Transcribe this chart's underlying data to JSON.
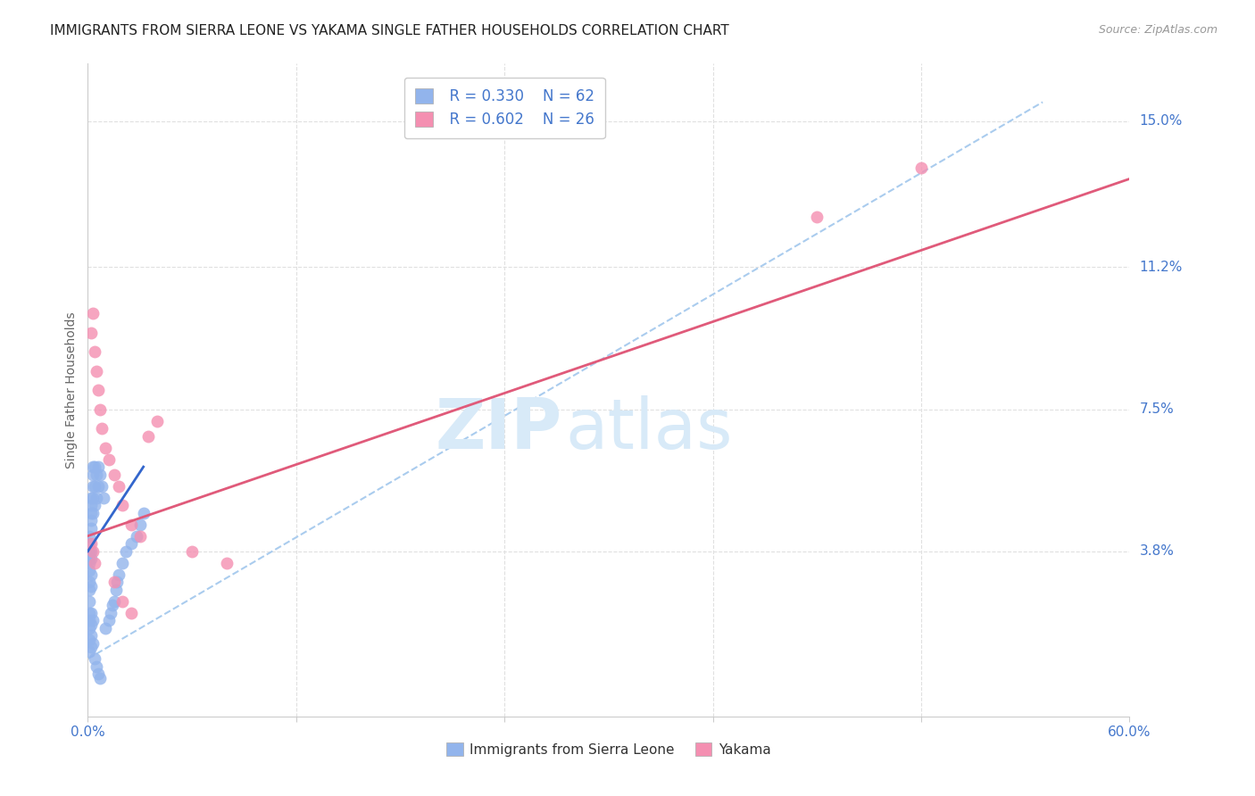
{
  "title": "IMMIGRANTS FROM SIERRA LEONE VS YAKAMA SINGLE FATHER HOUSEHOLDS CORRELATION CHART",
  "source": "Source: ZipAtlas.com",
  "ylabel": "Single Father Households",
  "xlim": [
    0.0,
    0.6
  ],
  "ylim": [
    -0.005,
    0.165
  ],
  "y_tick_labels_right": [
    "15.0%",
    "11.2%",
    "7.5%",
    "3.8%"
  ],
  "y_tick_values_right": [
    0.15,
    0.112,
    0.075,
    0.038
  ],
  "blue_R": "R = 0.330",
  "blue_N": "N = 62",
  "pink_R": "R = 0.602",
  "pink_N": "N = 26",
  "blue_color": "#92B4EC",
  "pink_color": "#F48FB1",
  "blue_line_color": "#3366CC",
  "pink_line_color": "#E05A7A",
  "dashed_line_color": "#AACCEE",
  "watermark_zip": "ZIP",
  "watermark_atlas": "atlas",
  "watermark_color": "#D8EAF8",
  "blue_scatter_x": [
    0.001,
    0.001,
    0.001,
    0.001,
    0.001,
    0.001,
    0.001,
    0.001,
    0.001,
    0.001,
    0.002,
    0.002,
    0.002,
    0.002,
    0.002,
    0.002,
    0.002,
    0.002,
    0.002,
    0.003,
    0.003,
    0.003,
    0.003,
    0.003,
    0.004,
    0.004,
    0.004,
    0.005,
    0.005,
    0.006,
    0.006,
    0.007,
    0.008,
    0.009,
    0.001,
    0.001,
    0.002,
    0.002,
    0.003,
    0.001,
    0.002,
    0.001,
    0.002,
    0.003,
    0.004,
    0.005,
    0.006,
    0.007,
    0.01,
    0.012,
    0.013,
    0.014,
    0.015,
    0.016,
    0.017,
    0.018,
    0.02,
    0.022,
    0.025,
    0.028,
    0.03,
    0.032
  ],
  "blue_scatter_y": [
    0.035,
    0.04,
    0.038,
    0.042,
    0.033,
    0.036,
    0.03,
    0.028,
    0.025,
    0.022,
    0.048,
    0.05,
    0.052,
    0.044,
    0.046,
    0.038,
    0.036,
    0.032,
    0.029,
    0.055,
    0.058,
    0.06,
    0.052,
    0.048,
    0.06,
    0.055,
    0.05,
    0.058,
    0.052,
    0.06,
    0.055,
    0.058,
    0.055,
    0.052,
    0.02,
    0.018,
    0.022,
    0.019,
    0.02,
    0.015,
    0.016,
    0.012,
    0.013,
    0.014,
    0.01,
    0.008,
    0.006,
    0.005,
    0.018,
    0.02,
    0.022,
    0.024,
    0.025,
    0.028,
    0.03,
    0.032,
    0.035,
    0.038,
    0.04,
    0.042,
    0.045,
    0.048
  ],
  "pink_scatter_x": [
    0.002,
    0.003,
    0.004,
    0.005,
    0.006,
    0.007,
    0.008,
    0.01,
    0.012,
    0.015,
    0.018,
    0.02,
    0.025,
    0.03,
    0.06,
    0.08,
    0.035,
    0.04,
    0.002,
    0.003,
    0.004,
    0.42,
    0.48,
    0.015,
    0.02,
    0.025
  ],
  "pink_scatter_y": [
    0.095,
    0.1,
    0.09,
    0.085,
    0.08,
    0.075,
    0.07,
    0.065,
    0.062,
    0.058,
    0.055,
    0.05,
    0.045,
    0.042,
    0.038,
    0.035,
    0.068,
    0.072,
    0.04,
    0.038,
    0.035,
    0.125,
    0.138,
    0.03,
    0.025,
    0.022
  ],
  "blue_line_x": [
    0.0,
    0.032
  ],
  "blue_line_y": [
    0.038,
    0.06
  ],
  "pink_line_x": [
    0.0,
    0.6
  ],
  "pink_line_y": [
    0.042,
    0.135
  ],
  "dashed_line_x": [
    0.0,
    0.55
  ],
  "dashed_line_y": [
    0.01,
    0.155
  ],
  "grid_color": "#E0E0E0",
  "bg_color": "#FFFFFF",
  "title_fontsize": 11,
  "axis_label_fontsize": 10,
  "tick_fontsize": 11,
  "legend_fontsize": 12
}
